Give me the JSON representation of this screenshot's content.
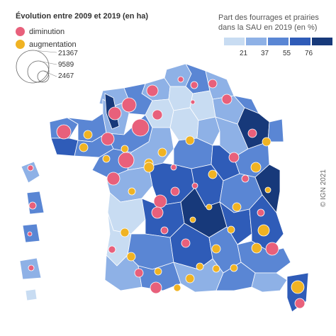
{
  "title": "Évolution entre 2009 et 2019 (en ha)",
  "legend": {
    "decrease": {
      "label": "diminution",
      "color": "#e8607b"
    },
    "increase": {
      "label": "augmentation",
      "color": "#f0b323"
    },
    "sizes": [
      "21367",
      "9589",
      "2467"
    ]
  },
  "choropleth": {
    "title": "Part des fourrages et prairies dans la SAU en 2019 (en %)",
    "class_colors": [
      "#c8dcf2",
      "#8eb1e6",
      "#5a86d4",
      "#2f5cb8",
      "#17397a"
    ],
    "breaks": [
      "21",
      "37",
      "55",
      "76"
    ]
  },
  "credit": "© IGN 2021",
  "colors": {
    "border": "#ffffff",
    "circle_stroke": "#ffffff"
  }
}
